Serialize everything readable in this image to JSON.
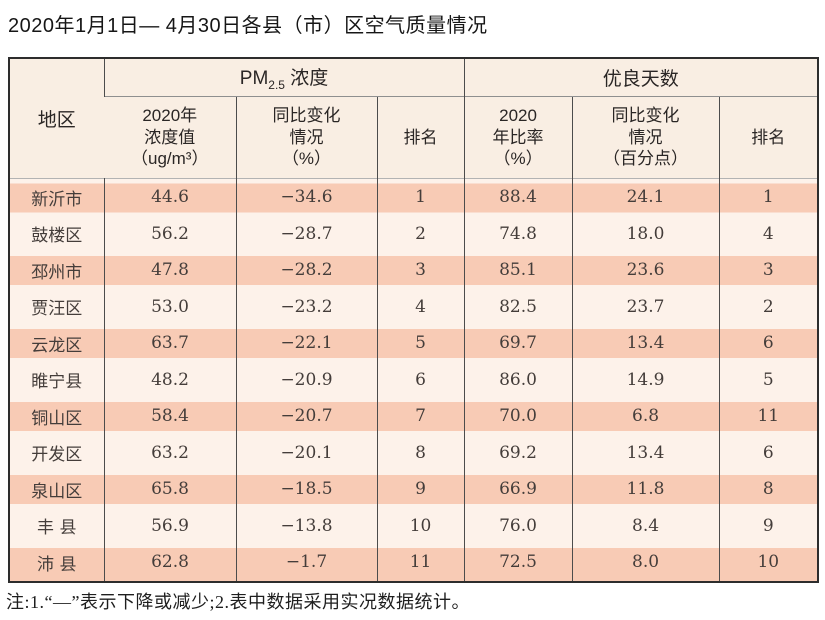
{
  "page": {
    "title": "2020年1月1日— 4月30日各县（市）区空气质量情况",
    "footnote": "注:1.“—”表示下降或减少;2.表中数据采用实况数据统计。"
  },
  "table": {
    "corner_header": "地区",
    "group_headers": {
      "pm_prefix": "PM",
      "pm_subscript": "2.5",
      "pm_suffix": " 浓度",
      "good_days": "优良天数"
    },
    "sub_headers": {
      "pm_value": "2020年\n浓度值\n（ug/m³）",
      "pm_change": "同比变化\n情况\n（%）",
      "pm_rank": "排名",
      "good_rate": "2020\n年比率\n（%）",
      "good_change": "同比变化\n情况\n（百分点）",
      "good_rank": "排名"
    },
    "rows": [
      {
        "region": "新沂市",
        "pm_value": "44.6",
        "pm_change": "−34.6",
        "pm_rank": "1",
        "good_rate": "88.4",
        "good_change": "24.1",
        "good_rank": "1"
      },
      {
        "region": "鼓楼区",
        "pm_value": "56.2",
        "pm_change": "−28.7",
        "pm_rank": "2",
        "good_rate": "74.8",
        "good_change": "18.0",
        "good_rank": "4"
      },
      {
        "region": "邳州市",
        "pm_value": "47.8",
        "pm_change": "−28.2",
        "pm_rank": "3",
        "good_rate": "85.1",
        "good_change": "23.6",
        "good_rank": "3"
      },
      {
        "region": "贾汪区",
        "pm_value": "53.0",
        "pm_change": "−23.2",
        "pm_rank": "4",
        "good_rate": "82.5",
        "good_change": "23.7",
        "good_rank": "2"
      },
      {
        "region": "云龙区",
        "pm_value": "63.7",
        "pm_change": "−22.1",
        "pm_rank": "5",
        "good_rate": "69.7",
        "good_change": "13.4",
        "good_rank": "6"
      },
      {
        "region": "睢宁县",
        "pm_value": "48.2",
        "pm_change": "−20.9",
        "pm_rank": "6",
        "good_rate": "86.0",
        "good_change": "14.9",
        "good_rank": "5"
      },
      {
        "region": "铜山区",
        "pm_value": "58.4",
        "pm_change": "−20.7",
        "pm_rank": "7",
        "good_rate": "70.0",
        "good_change": "6.8",
        "good_rank": "11"
      },
      {
        "region": "开发区",
        "pm_value": "63.2",
        "pm_change": "−20.1",
        "pm_rank": "8",
        "good_rate": "69.2",
        "good_change": "13.4",
        "good_rank": "6"
      },
      {
        "region": "泉山区",
        "pm_value": "65.8",
        "pm_change": "−18.5",
        "pm_rank": "9",
        "good_rate": "66.9",
        "good_change": "11.8",
        "good_rank": "8"
      },
      {
        "region": "丰 县",
        "pm_value": "56.9",
        "pm_change": "−13.8",
        "pm_rank": "10",
        "good_rate": "76.0",
        "good_change": "8.4",
        "good_rank": "9"
      },
      {
        "region": "沛 县",
        "pm_value": "62.8",
        "pm_change": "−1.7",
        "pm_rank": "11",
        "good_rate": "72.5",
        "good_change": "8.0",
        "good_rank": "10"
      }
    ]
  },
  "colors": {
    "row_stripe": "#f8cbb5",
    "row_light": "#fdf2ea",
    "header_bg": "#f9eee3",
    "border_outer": "#2d2d2d",
    "border_inner": "#4c4c4c"
  }
}
